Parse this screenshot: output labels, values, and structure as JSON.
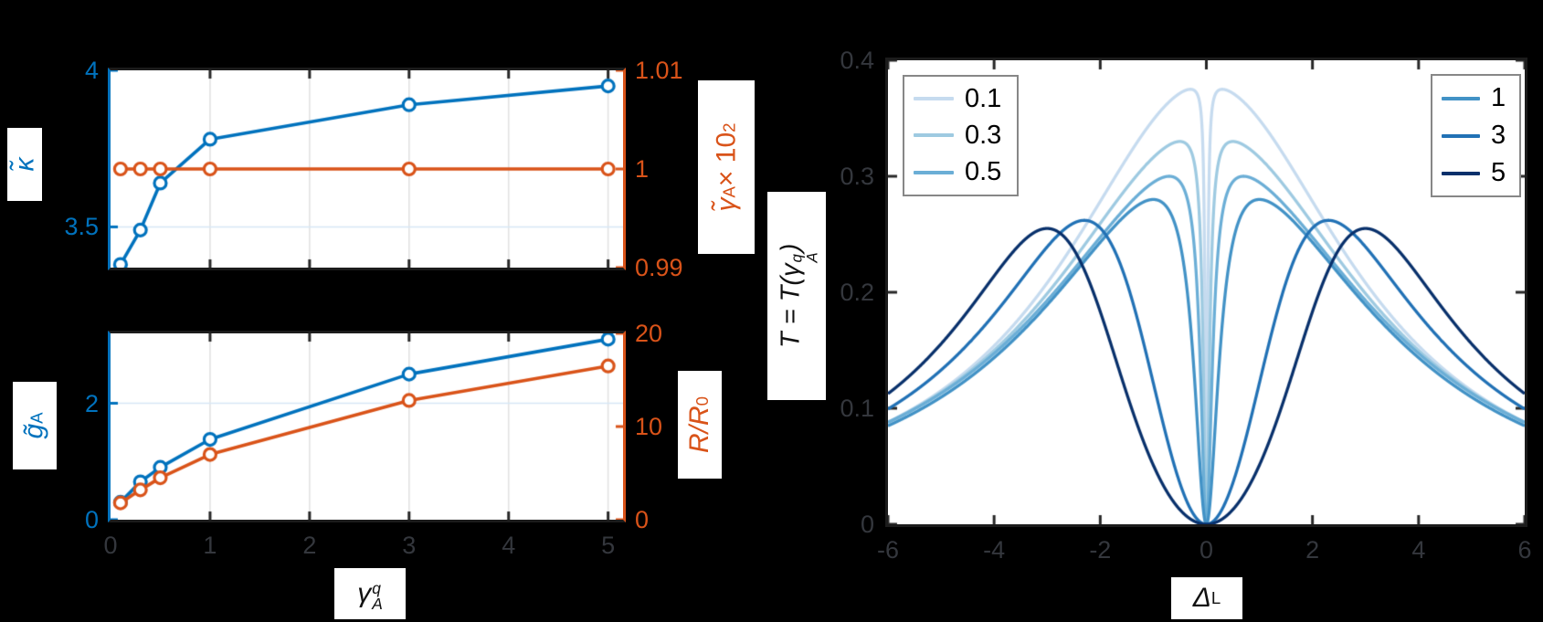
{
  "figure": {
    "background": "#000000",
    "panel_background": "#ffffff",
    "axis_blue": "#0072bd",
    "axis_orange": "#d95319",
    "tick_text_dark": "#34373d",
    "spine_dark": "#1c1c1c",
    "grid_vertical": "#e2e2e2",
    "grid_horizontal": "#d6e7f5",
    "legend_border": "#878787"
  },
  "labels": {
    "kappa": {
      "text": "κ̃"
    },
    "gamma_right": {
      "base": "γ̃",
      "sub": "A",
      "mult": " × 10",
      "sup": "2"
    },
    "g_left": {
      "base": "g̃",
      "sub": "A"
    },
    "r_right": {
      "base": "R/R",
      "sub": "0"
    },
    "x_left": {
      "base": "γ",
      "sup": "q",
      "sub": "A"
    },
    "t_left": {
      "pre": "T = T(γ",
      "sup": "q",
      "sub": "A",
      "post": ")"
    },
    "x_right": {
      "base": "Δ",
      "sub": "L"
    }
  },
  "chart_data": [
    {
      "id": "kappa-gamma-vs-gammaAq",
      "type": "line",
      "x": [
        0.1,
        0.3,
        0.5,
        1,
        3,
        5
      ],
      "xlim": [
        0,
        5.15
      ],
      "xgrid": [
        1,
        2,
        3,
        4,
        5
      ],
      "xticklabels": [],
      "left_axis": {
        "label": "kappa_tilde",
        "display": "κ̃",
        "color": "#0072bd",
        "lim": [
          3.37,
          4.0
        ],
        "ticks": [
          3.5,
          4
        ],
        "grid": [
          3.5
        ]
      },
      "right_axis": {
        "label": "gamma_tilde_A_x10^2",
        "display": "γ̃_A × 10²",
        "color": "#d95319",
        "lim": [
          0.99,
          1.01
        ],
        "ticks": [
          0.99,
          1,
          1.01
        ]
      },
      "series": [
        {
          "name": "kappa_tilde",
          "axis": "left",
          "color": "#0072bd",
          "marker": "o",
          "values": [
            3.38,
            3.49,
            3.64,
            3.78,
            3.89,
            3.95
          ]
        },
        {
          "name": "gamma_tilde_A_x10^2",
          "axis": "right",
          "color": "#d95319",
          "marker": "o",
          "values": [
            1,
            1,
            1,
            1,
            1,
            1
          ]
        }
      ]
    },
    {
      "id": "gA-R-vs-gammaAq",
      "type": "line",
      "x": [
        0.1,
        0.3,
        0.5,
        1,
        3,
        5
      ],
      "xlim": [
        0,
        5.15
      ],
      "xgrid": [
        1,
        2,
        3,
        4,
        5
      ],
      "xticks": [
        0,
        1,
        2,
        3,
        4,
        5
      ],
      "xlabel": "gamma_A^q",
      "left_axis": {
        "label": "g_tilde_A",
        "display": "g̃_A",
        "color": "#0072bd",
        "lim": [
          0,
          3.2
        ],
        "ticks": [
          0,
          2
        ],
        "grid": [
          2
        ]
      },
      "right_axis": {
        "label": "R/R_0",
        "display": "R/R₀",
        "color": "#d95319",
        "lim": [
          0,
          20
        ],
        "ticks": [
          0,
          10,
          20
        ]
      },
      "series": [
        {
          "name": "g_tilde_A",
          "axis": "left",
          "color": "#0072bd",
          "marker": "o",
          "values": [
            0.3,
            0.65,
            0.9,
            1.38,
            2.5,
            3.1
          ]
        },
        {
          "name": "R_over_R0",
          "axis": "right",
          "color": "#d95319",
          "marker": "o",
          "values": [
            1.8,
            3.2,
            4.5,
            7.0,
            12.8,
            16.5
          ]
        }
      ]
    },
    {
      "id": "transmission-vs-DeltaL",
      "type": "line",
      "xlabel": "Delta_L",
      "ylabel": "T = T(gamma_A^q)",
      "xlim": [
        -6,
        6
      ],
      "ylim": [
        0,
        0.4
      ],
      "xticks": [
        -6,
        -4,
        -2,
        0,
        2,
        4,
        6
      ],
      "yticks": [
        0,
        0.1,
        0.2,
        0.3,
        0.4
      ],
      "grid": false,
      "curve_model": "T(x) = peak_T*g2*x^2 / ((x^2 - peak_x^2)^2 + g2*x^2)",
      "series": [
        {
          "label": "0.1",
          "color": "#c6dbef",
          "peak_x": 0.3,
          "peak_T": 0.375,
          "g2": 11.0,
          "T_at_edge": 0.088
        },
        {
          "label": "0.3",
          "color": "#9ecae1",
          "peak_x": 0.5,
          "peak_T": 0.33,
          "g2": 12.9,
          "T_at_edge": 0.088
        },
        {
          "label": "0.5",
          "color": "#6baed6",
          "peak_x": 0.7,
          "peak_T": 0.3,
          "g2": 14.5,
          "T_at_edge": 0.088
        },
        {
          "label": "1",
          "color": "#4292c6",
          "peak_x": 1.0,
          "peak_T": 0.28,
          "g2": 14.8,
          "T_at_edge": 0.085
        },
        {
          "label": "3",
          "color": "#2171b5",
          "peak_x": 2.3,
          "peak_T": 0.262,
          "g2": 16.0,
          "T_at_edge": 0.099
        },
        {
          "label": "5",
          "color": "#08306b",
          "peak_x": 3.0,
          "peak_T": 0.255,
          "g2": 16.0,
          "T_at_edge": 0.112
        }
      ],
      "legends": [
        {
          "position": "top-left",
          "entries": [
            "0.1",
            "0.3",
            "0.5"
          ]
        },
        {
          "position": "top-right",
          "entries": [
            "1",
            "3",
            "5"
          ]
        }
      ]
    }
  ]
}
